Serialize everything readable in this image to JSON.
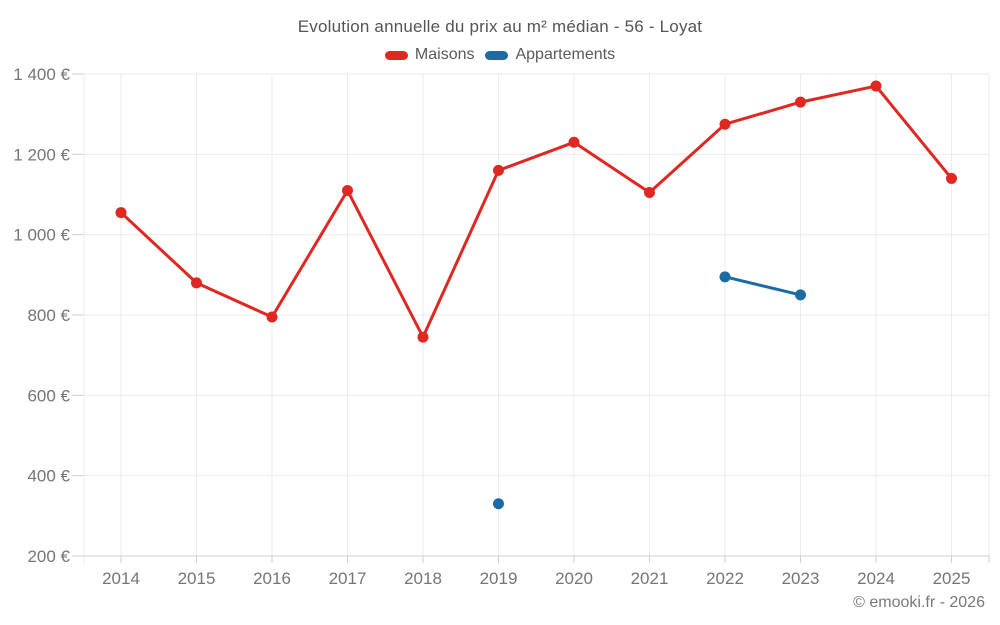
{
  "watermark": "© emooki.fr - 2026",
  "chart_data": {
    "type": "line",
    "title": "Evolution annuelle du prix au m² médian - 56 - Loyat",
    "x": [
      "2014",
      "2015",
      "2016",
      "2017",
      "2018",
      "2019",
      "2020",
      "2021",
      "2022",
      "2023",
      "2024",
      "2025"
    ],
    "series": [
      {
        "name": "Maisons",
        "color": "#e02822",
        "marker": "circle",
        "values": [
          1055,
          880,
          795,
          1110,
          745,
          1160,
          1230,
          1105,
          1275,
          1330,
          1370,
          1140
        ]
      },
      {
        "name": "Appartements",
        "color": "#1b6ba5",
        "marker": "circle",
        "values": [
          null,
          null,
          null,
          null,
          null,
          330,
          null,
          null,
          895,
          850,
          null,
          null
        ]
      }
    ],
    "xlabel": "",
    "ylabel": "",
    "ylim": [
      200,
      1400
    ],
    "grid": true,
    "legend_position": "top-center",
    "yticks": [
      {
        "value": 1400,
        "label": "1 400 €"
      },
      {
        "value": 1200,
        "label": "1 200 €"
      },
      {
        "value": 1000,
        "label": "1 000 €"
      },
      {
        "value": 800,
        "label": "800 €"
      },
      {
        "value": 600,
        "label": "600 €"
      },
      {
        "value": 400,
        "label": "400 €"
      },
      {
        "value": 200,
        "label": "200 €"
      }
    ]
  },
  "style": {
    "background": "#ffffff",
    "grid_color": "#ebebeb",
    "axis_color": "#cfcfcf",
    "tick_label_color": "#757575",
    "title_color": "#555555",
    "legend_label_color": "#5a5a5a",
    "watermark_color": "#787878"
  }
}
